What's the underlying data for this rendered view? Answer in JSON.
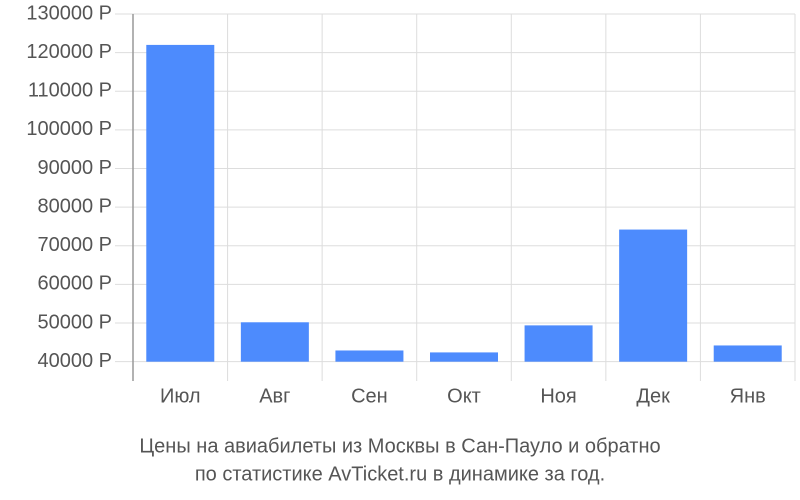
{
  "chart_data": {
    "type": "bar",
    "title": [
      "Цены на авиабилеты из Москвы в Сан-Пауло и обратно",
      "по статистике AvTicket.ru в динамике за год."
    ],
    "categories": [
      "Июл",
      "Авг",
      "Сен",
      "Окт",
      "Ноя",
      "Дек",
      "Янв"
    ],
    "values": [
      122000,
      50200,
      42900,
      42400,
      49400,
      74200,
      44200
    ],
    "color": "#4d8bfd",
    "ylim": [
      35000,
      130000
    ],
    "yticks": [
      {
        "value": 40000,
        "label": "40000 Р"
      },
      {
        "value": 50000,
        "label": "50000 Р"
      },
      {
        "value": 60000,
        "label": "60000 Р"
      },
      {
        "value": 70000,
        "label": "70000 Р"
      },
      {
        "value": 80000,
        "label": "80000 Р"
      },
      {
        "value": 90000,
        "label": "90000 Р"
      },
      {
        "value": 100000,
        "label": "100000 Р"
      },
      {
        "value": 110000,
        "label": "110000 Р"
      },
      {
        "value": 120000,
        "label": "120000 Р"
      },
      {
        "value": 130000,
        "label": "130000 Р"
      }
    ],
    "grid": true
  }
}
